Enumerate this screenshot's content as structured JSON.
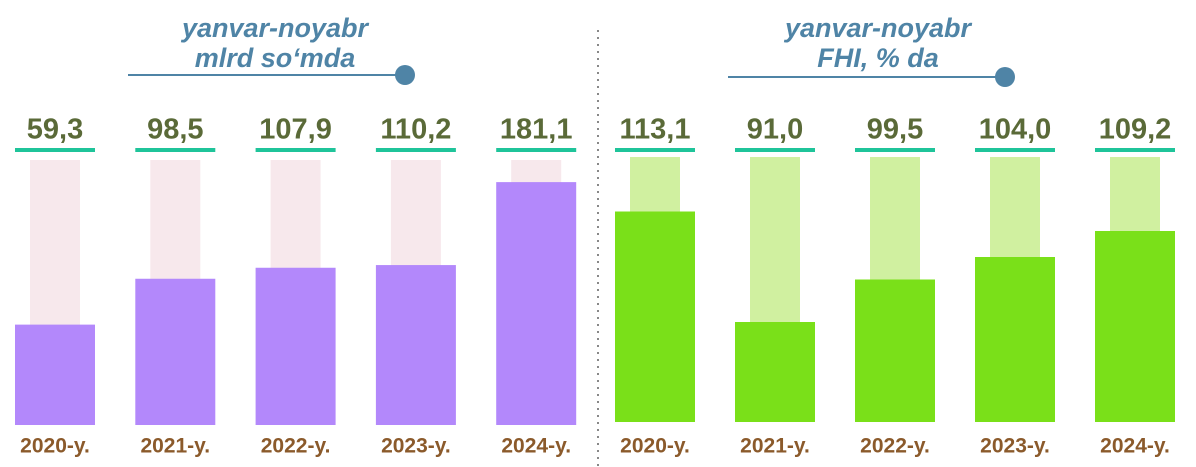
{
  "chart_data": [
    {
      "type": "bar",
      "title": "yanvar-noyabr",
      "subtitle": "mlrd so‘mda",
      "categories": [
        "2020-y.",
        "2021-y.",
        "2022-y.",
        "2023-y.",
        "2024-y."
      ],
      "values": [
        59.3,
        98.5,
        107.9,
        110.2,
        181.1
      ],
      "value_labels": [
        "59,3",
        "98,5",
        "107,9",
        "110,2",
        "181,1"
      ],
      "color": "#b388fb",
      "ylim": [
        -26.5,
        200
      ]
    },
    {
      "type": "bar",
      "title": "yanvar-noyabr",
      "subtitle": "FHI, % da",
      "categories": [
        "2020-y.",
        "2021-y.",
        "2022-y.",
        "2023-y.",
        "2024-y."
      ],
      "values": [
        113.1,
        91.0,
        99.5,
        104.0,
        109.2
      ],
      "value_labels": [
        "113,1",
        "91,0",
        "99,5",
        "104,0",
        "109,2"
      ],
      "color": "#7ae019",
      "ylim": [
        71,
        124
      ]
    }
  ]
}
